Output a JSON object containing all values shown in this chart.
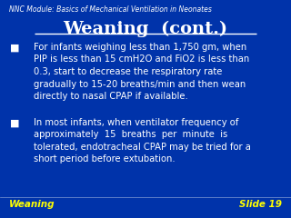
{
  "bg_color": "#0033aa",
  "header_text": "NNC Module: Basics of Mechanical Ventilation in Neonates",
  "title": "Weaning  (cont.)",
  "bullet1_lines": [
    "For infants weighing less than 1,750 gm, when",
    "PIP is less than 15 cmH2O and FiO2 is less than",
    "0.3, start to decrease the respiratory rate",
    "gradually to 15-20 breaths/min and then wean",
    "directly to nasal CPAP if available."
  ],
  "bullet2_lines": [
    "In most infants, when ventilator frequency of",
    "approximately  15  breaths  per  minute  is",
    "tolerated, endotracheal CPAP may be tried for a",
    "short period before extubation."
  ],
  "footer_left": "Weaning",
  "footer_right": "Slide 19",
  "text_color": "#ffffff",
  "yellow_color": "#ffff00",
  "header_fontsize": 5.5,
  "title_fontsize": 14,
  "bullet_fontsize": 7.2,
  "footer_fontsize": 7.5,
  "bullet_marker": "■"
}
